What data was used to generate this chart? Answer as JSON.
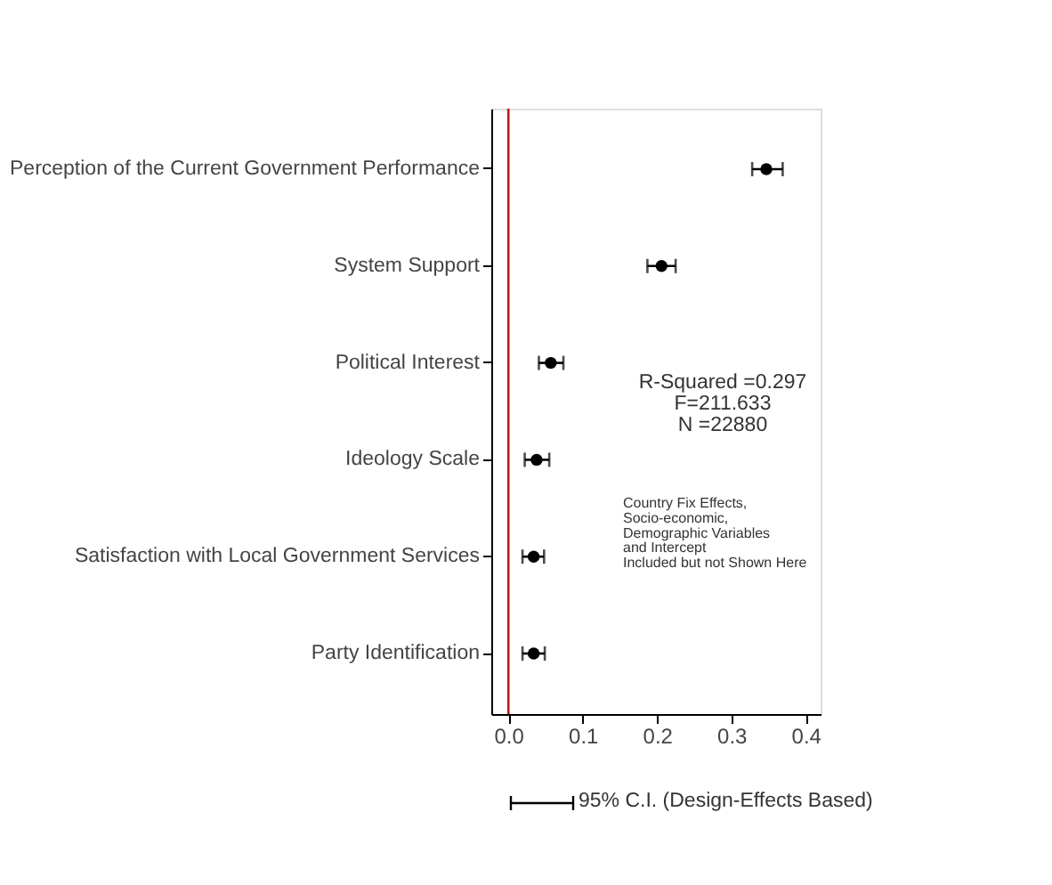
{
  "chart_data": {
    "type": "scatter",
    "orientation": "horizontal",
    "marker": "circle",
    "grid": false,
    "color": "#000000",
    "categories": [
      "Perception of the Current Government Performance",
      "System Support",
      "Political Interest",
      "Ideology Scale",
      "Satisfaction with Local Government Services",
      "Party Identification"
    ],
    "values": [
      0.347,
      0.206,
      0.057,
      0.038,
      0.034,
      0.034
    ],
    "errors": [
      [
        0.328,
        0.369
      ],
      [
        0.187,
        0.225
      ],
      [
        0.041,
        0.074
      ],
      [
        0.022,
        0.055
      ],
      [
        0.019,
        0.048
      ],
      [
        0.019,
        0.049
      ]
    ],
    "xlim": [
      -0.023,
      0.42
    ],
    "xticks": [
      {
        "value": 0,
        "label": "0.0"
      },
      {
        "value": 0.1,
        "label": "0.1"
      },
      {
        "value": 0.2,
        "label": "0.2"
      },
      {
        "value": 0.3,
        "label": "0.3"
      },
      {
        "value": 0.4,
        "label": "0.4"
      }
    ],
    "ref_lines": [
      {
        "axis": "x",
        "value": 0,
        "color": "#c0161c"
      }
    ],
    "annotations": [
      "R-Squared =0.297\nF=211.633\nN =22880",
      "Country Fix Effects,\nSocio-economic,\nDemographic Variables\nand Intercept\nIncluded but not Shown Here",
      "95% C.I. (Design-Effects Based)"
    ]
  }
}
